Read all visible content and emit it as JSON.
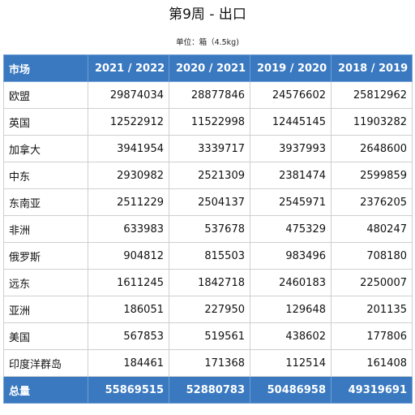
{
  "title": "第9周 - 出口",
  "subtitle": "单位：箱（4.5kg)",
  "table": {
    "headers": [
      "市场",
      "2021 / 2022",
      "2020 / 2021",
      "2019 / 2020",
      "2018 / 2019"
    ],
    "rows": [
      {
        "market": "欧盟",
        "values": [
          "29874034",
          "28877846",
          "24576602",
          "25812962"
        ]
      },
      {
        "market": "英国",
        "values": [
          "12522912",
          "11522998",
          "12445145",
          "11903282"
        ]
      },
      {
        "market": "加拿大",
        "values": [
          "3941954",
          "3339717",
          "3937993",
          "2648600"
        ]
      },
      {
        "market": "中东",
        "values": [
          "2930982",
          "2521309",
          "2381474",
          "2599859"
        ]
      },
      {
        "market": "东南亚",
        "values": [
          "2511229",
          "2504137",
          "2545971",
          "2376205"
        ]
      },
      {
        "market": "非洲",
        "values": [
          "633983",
          "537678",
          "475329",
          "480247"
        ]
      },
      {
        "market": "俄罗斯",
        "values": [
          "904812",
          "815503",
          "983496",
          "708180"
        ]
      },
      {
        "market": "远东",
        "values": [
          "1611245",
          "1842718",
          "2460183",
          "2250007"
        ]
      },
      {
        "market": "亚洲",
        "values": [
          "186051",
          "227950",
          "129648",
          "201135"
        ]
      },
      {
        "market": "美国",
        "values": [
          "567853",
          "519561",
          "438602",
          "177806"
        ]
      },
      {
        "market": "印度洋群岛",
        "values": [
          "184461",
          "171368",
          "112514",
          "161408"
        ]
      }
    ],
    "total": {
      "market": "总量",
      "values": [
        "55869515",
        "52880783",
        "50486958",
        "49319691"
      ]
    }
  },
  "colors": {
    "header_bg": "#3a79c0",
    "header_text": "#ffffff",
    "border": "#cfcfcf"
  }
}
